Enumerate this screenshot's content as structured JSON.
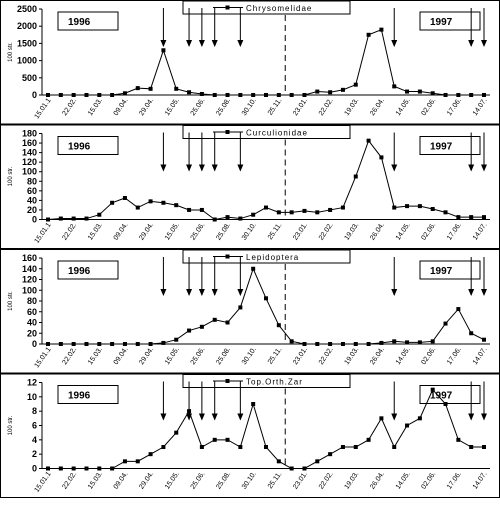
{
  "chart_data": [
    {
      "type": "line",
      "y_label": "100 str.",
      "annotations": [
        "1996",
        "1997"
      ],
      "categories": [
        "15.01.1",
        null,
        "22.02.",
        null,
        "15.03.",
        null,
        "09.04.",
        null,
        "29.04.",
        null,
        "15.05.",
        null,
        "25.06.",
        null,
        "25.08.",
        null,
        "30.10.",
        null,
        "25.11.",
        null,
        "23.01.",
        null,
        "22.02.",
        null,
        "19.03.",
        null,
        "26.04.",
        null,
        "14.05.",
        null,
        "02.06.",
        null,
        "17.06.",
        null,
        "14.07."
      ],
      "series": [
        {
          "name": "Chrysomelidae",
          "color": "#000000",
          "values": [
            0,
            0,
            0,
            0,
            0,
            0,
            50,
            200,
            180,
            1300,
            180,
            80,
            30,
            0,
            0,
            0,
            0,
            0,
            0,
            0,
            0,
            100,
            80,
            150,
            300,
            1750,
            1900,
            250,
            100,
            100,
            50,
            0,
            0,
            0,
            0
          ]
        }
      ],
      "ylim": [
        0,
        2500
      ],
      "yticks": [
        0,
        500,
        1000,
        1500,
        2000,
        2500
      ]
    },
    {
      "type": "line",
      "y_label": "100 str.",
      "annotations": [
        "1996",
        "1997"
      ],
      "categories": [
        "15.01.1",
        null,
        "22.02.",
        null,
        "15.03.",
        null,
        "09.04.",
        null,
        "29.04.",
        null,
        "15.05.",
        null,
        "25.06.",
        null,
        "25.08.",
        null,
        "30.10.",
        null,
        "25.11.",
        null,
        "23.01.",
        null,
        "22.02.",
        null,
        "19.03.",
        null,
        "26.04.",
        null,
        "14.05.",
        null,
        "02.06.",
        null,
        "17.06.",
        null,
        "14.07."
      ],
      "series": [
        {
          "name": "Curculionidae",
          "color": "#000000",
          "values": [
            0,
            2,
            2,
            2,
            10,
            35,
            45,
            25,
            38,
            35,
            30,
            20,
            20,
            0,
            5,
            2,
            10,
            25,
            15,
            15,
            18,
            15,
            20,
            25,
            90,
            165,
            130,
            25,
            28,
            28,
            22,
            15,
            5,
            5,
            5
          ]
        }
      ],
      "ylim": [
        0,
        180
      ],
      "yticks": [
        0,
        20,
        40,
        60,
        80,
        100,
        120,
        140,
        160,
        180
      ]
    },
    {
      "type": "line",
      "y_label": "100 str.",
      "annotations": [
        "1996",
        "1997"
      ],
      "categories": [
        "15.01.1",
        null,
        "22.02.",
        null,
        "15.03.",
        null,
        "09.04.",
        null,
        "29.04.",
        null,
        "15.05.",
        null,
        "25.06.",
        null,
        "25.08.",
        null,
        "30.10.",
        null,
        "25.11.",
        null,
        "23.01.",
        null,
        "22.02.",
        null,
        "19.03.",
        null,
        "26.04.",
        null,
        "14.05.",
        null,
        "02.06.",
        null,
        "17.06.",
        null,
        "14.07."
      ],
      "series": [
        {
          "name": "Lepidoptera",
          "color": "#000000",
          "values": [
            0,
            0,
            0,
            0,
            0,
            0,
            0,
            0,
            0,
            2,
            8,
            25,
            32,
            45,
            40,
            68,
            140,
            85,
            35,
            5,
            0,
            0,
            0,
            0,
            0,
            0,
            2,
            5,
            3,
            3,
            5,
            38,
            65,
            20,
            8
          ]
        }
      ],
      "ylim": [
        0,
        160
      ],
      "yticks": [
        0,
        20,
        40,
        60,
        80,
        100,
        120,
        140,
        160
      ]
    },
    {
      "type": "line",
      "y_label": "100 str.",
      "annotations": [
        "1996",
        "1997"
      ],
      "categories": [
        "15.01.1",
        null,
        "22.02.",
        null,
        "15.03.",
        null,
        "09.04.",
        null,
        "29.04.",
        null,
        "15.05.",
        null,
        "25.06.",
        null,
        "25.08.",
        null,
        "30.10.",
        null,
        "25.11.",
        null,
        "23.01.",
        null,
        "22.02.",
        null,
        "19.03.",
        null,
        "26.04.",
        null,
        "14.05.",
        null,
        "02.06.",
        null,
        "17.06.",
        null,
        "14.07."
      ],
      "series": [
        {
          "name": "Top.Orth.Zar",
          "color": "#000000",
          "values": [
            0,
            0,
            0,
            0,
            0,
            0,
            1,
            1,
            2,
            3,
            5,
            8,
            3,
            4,
            4,
            3,
            9,
            3,
            1,
            0,
            0,
            1,
            2,
            3,
            3,
            4,
            7,
            3,
            6,
            7,
            11,
            9,
            4,
            3,
            3
          ]
        }
      ],
      "ylim": [
        0,
        12
      ],
      "yticks": [
        0,
        2,
        4,
        6,
        8,
        10,
        12
      ]
    }
  ]
}
